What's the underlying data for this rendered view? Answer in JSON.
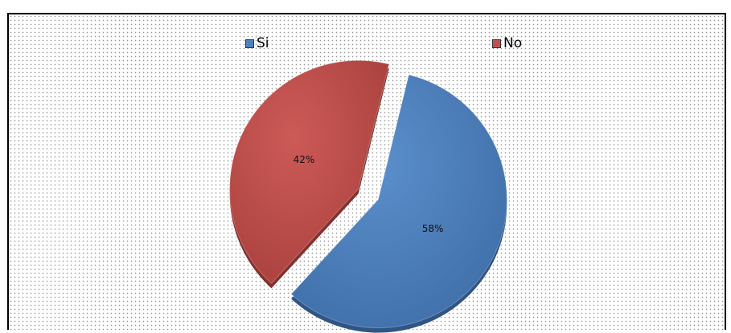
{
  "chart_data": {
    "type": "pie",
    "title": "",
    "exploded": true,
    "shading": "3d",
    "series": [
      {
        "name": "Si",
        "value": 58,
        "label": "58%",
        "color": "#4f81bd"
      },
      {
        "name": "No",
        "value": 42,
        "label": "42%",
        "color": "#c0504d"
      }
    ],
    "legend_position": "top"
  },
  "legend": [
    {
      "label": "Si",
      "color": "#4f81bd"
    },
    {
      "label": "No",
      "color": "#c0504d"
    }
  ]
}
